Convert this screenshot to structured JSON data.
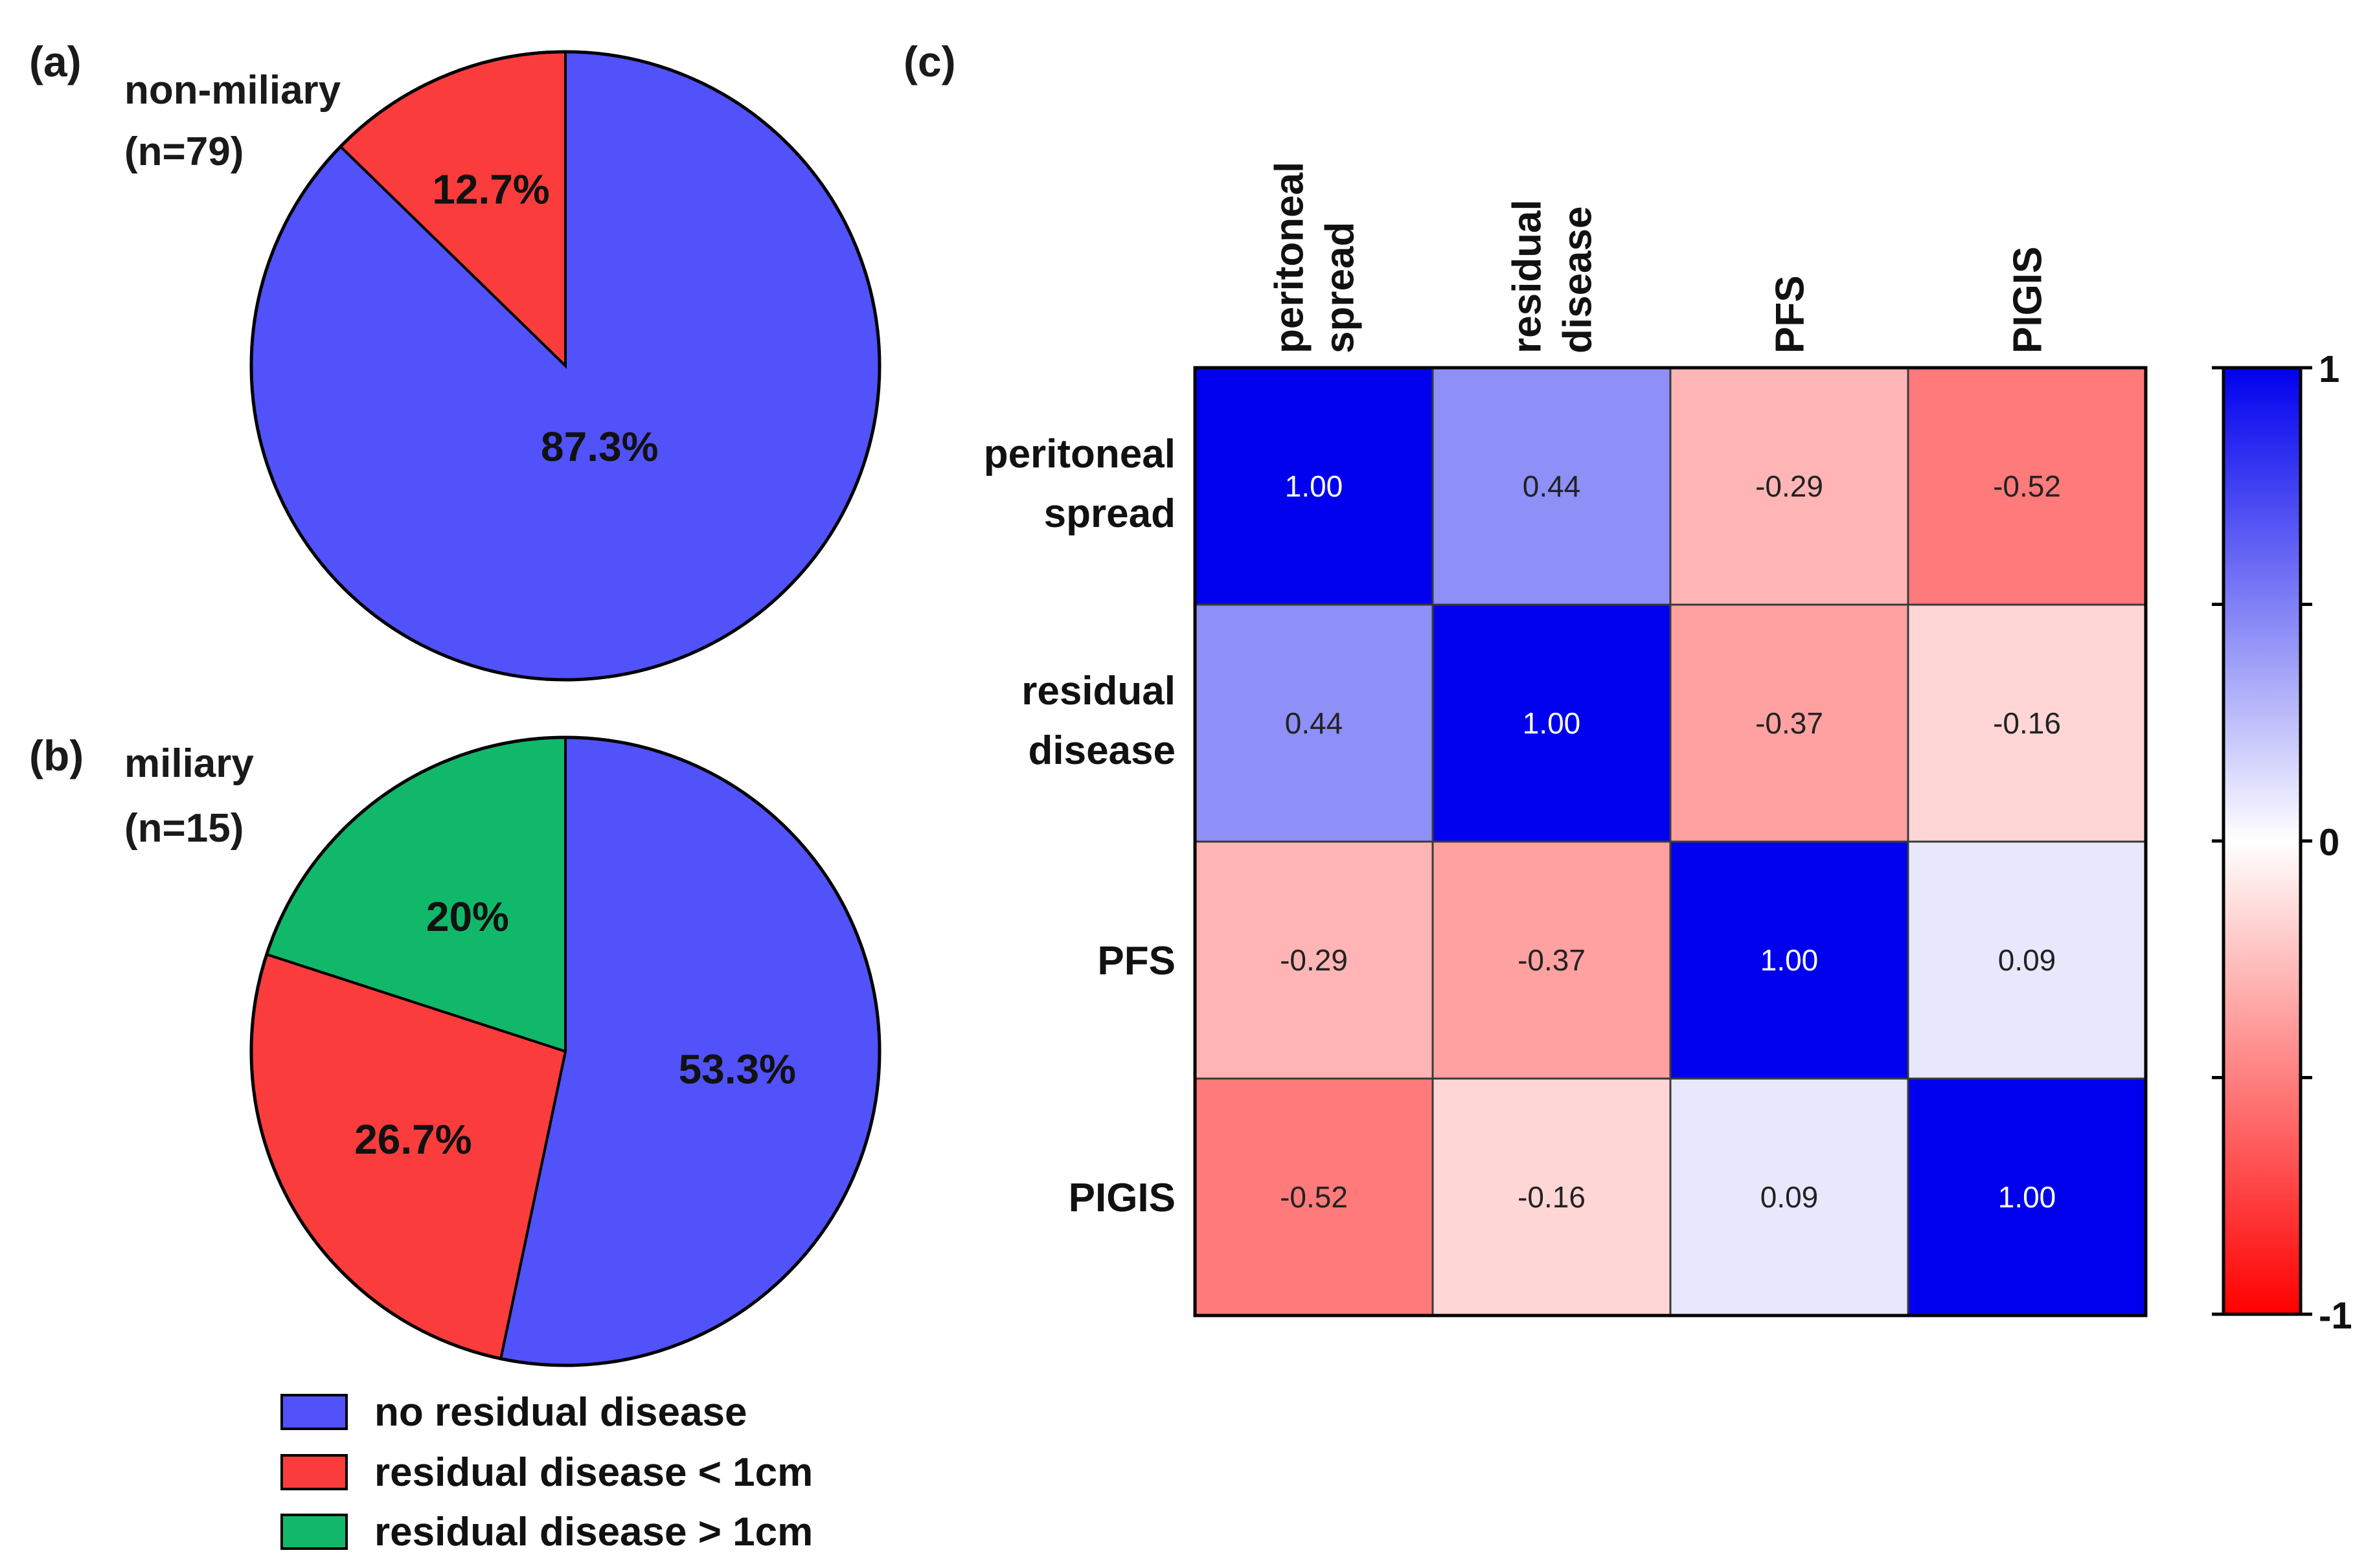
{
  "chart_data": [
    {
      "type": "pie",
      "panel": "(a)",
      "title_lines": [
        "non-miliary",
        "(n=79)"
      ],
      "slices": [
        {
          "label": "no residual disease",
          "value": 87.3,
          "display": "87.3%",
          "color": "#5252fa"
        },
        {
          "label": "residual disease < 1cm",
          "value": 12.7,
          "display": "12.7%",
          "color": "#fa3c3c"
        }
      ]
    },
    {
      "type": "pie",
      "panel": "(b)",
      "title_lines": [
        "miliary",
        "(n=15)"
      ],
      "slices": [
        {
          "label": "no residual disease",
          "value": 53.3,
          "display": "53.3%",
          "color": "#5252fa"
        },
        {
          "label": "residual disease < 1cm",
          "value": 26.7,
          "display": "26.7%",
          "color": "#fa3c3c"
        },
        {
          "label": "residual disease > 1cm",
          "value": 20,
          "display": "20%",
          "color": "#12b86a"
        }
      ]
    },
    {
      "type": "heatmap",
      "panel": "(c)",
      "col_labels": [
        [
          "peritoneal",
          "spread"
        ],
        [
          "residual",
          "disease"
        ],
        [
          "PFS"
        ],
        [
          "PIGIS"
        ]
      ],
      "row_labels": [
        [
          "peritoneal",
          "spread"
        ],
        [
          "residual",
          "disease"
        ],
        [
          "PFS"
        ],
        [
          "PIGIS"
        ]
      ],
      "values": [
        [
          1.0,
          0.44,
          -0.29,
          -0.52
        ],
        [
          0.44,
          1.0,
          -0.37,
          -0.16
        ],
        [
          -0.29,
          -0.37,
          1.0,
          0.09
        ],
        [
          -0.52,
          -0.16,
          0.09,
          1.0
        ]
      ],
      "value_labels": [
        [
          "1.00",
          "0.44",
          "-0.29",
          "-0.52"
        ],
        [
          "0.44",
          "1.00",
          "-0.37",
          "-0.16"
        ],
        [
          "-0.29",
          "-0.37",
          "1.00",
          "0.09"
        ],
        [
          "-0.52",
          "-0.16",
          "0.09",
          "1.00"
        ]
      ],
      "colorbar": {
        "min": -1,
        "max": 1,
        "tick_labels": [
          "1",
          "0",
          "-1"
        ],
        "low_color": "#ff0000",
        "mid_color": "#ffffff",
        "high_color": "#0000ee"
      }
    }
  ],
  "legend": [
    {
      "label": "no residual disease",
      "color": "#5252fa"
    },
    {
      "label": "residual disease < 1cm",
      "color": "#fa3c3c"
    },
    {
      "label": "residual disease > 1cm",
      "color": "#12b86a"
    }
  ]
}
